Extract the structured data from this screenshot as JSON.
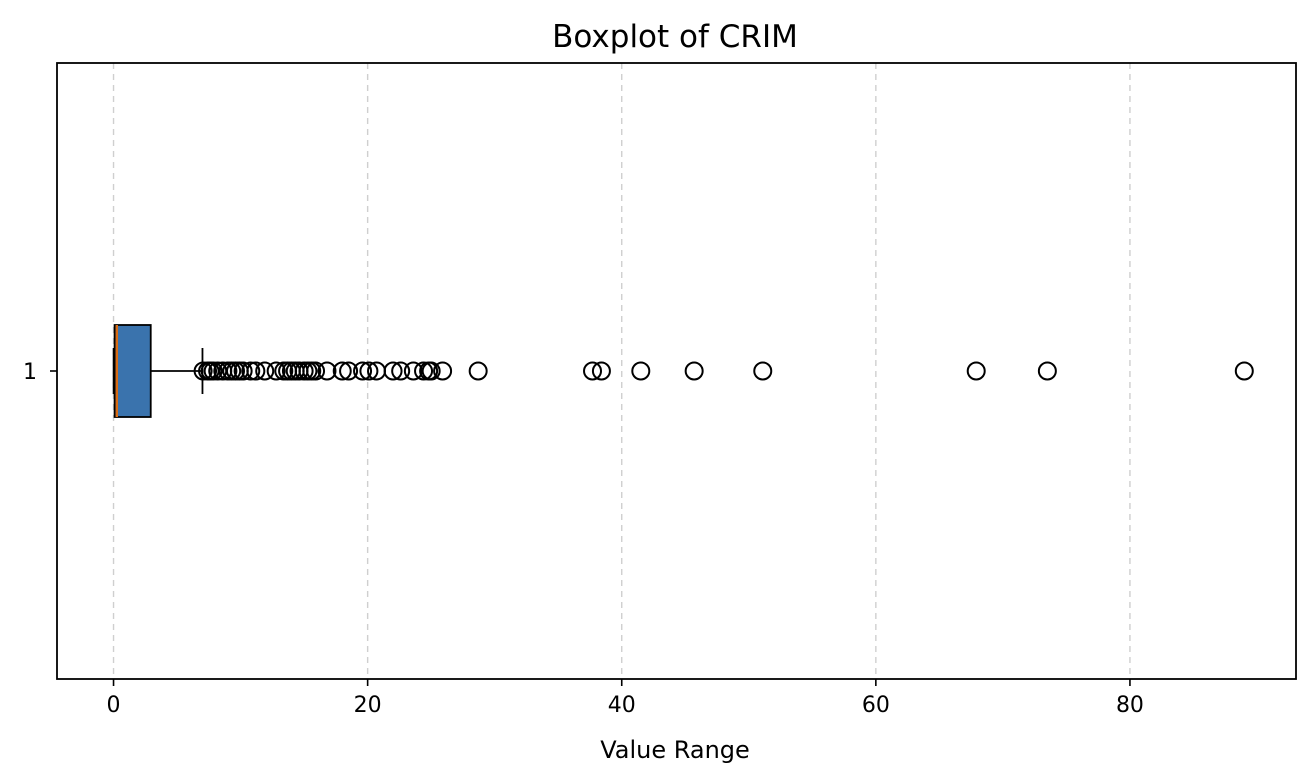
{
  "chart_data": {
    "type": "boxplot",
    "title": "Boxplot of CRIM",
    "xlabel": "Value Range",
    "ylabel": "",
    "orientation": "horizontal",
    "xlim": [
      -4.45,
      93.07
    ],
    "x_ticks": [
      0,
      20,
      40,
      60,
      80
    ],
    "x_tick_labels": [
      "0",
      "20",
      "40",
      "60",
      "80"
    ],
    "y_tick_labels": [
      "1"
    ],
    "grid": {
      "x": true,
      "y": false
    },
    "series": [
      {
        "category": "1",
        "whisker_low": 0.00632,
        "q1": 0.082,
        "median": 0.257,
        "q3": 2.927,
        "whisker_high": 7.0,
        "outliers": [
          7.05,
          7.4,
          7.6,
          7.84,
          8.2,
          8.6,
          9.0,
          9.3,
          9.6,
          9.9,
          10.2,
          10.8,
          11.2,
          11.9,
          12.8,
          13.4,
          13.7,
          14.0,
          14.3,
          14.6,
          15.0,
          15.3,
          15.6,
          15.9,
          16.8,
          18.0,
          18.5,
          19.6,
          20.1,
          20.7,
          22.0,
          22.6,
          23.6,
          24.4,
          24.8,
          25.0,
          25.9,
          28.7,
          37.7,
          38.4,
          41.5,
          45.7,
          51.1,
          67.9,
          73.5,
          89.0
        ]
      }
    ],
    "colors": {
      "box_fill": "#3a73ad",
      "median": "#d86b13",
      "edge": "#000000",
      "grid": "#cfcfcf"
    }
  }
}
